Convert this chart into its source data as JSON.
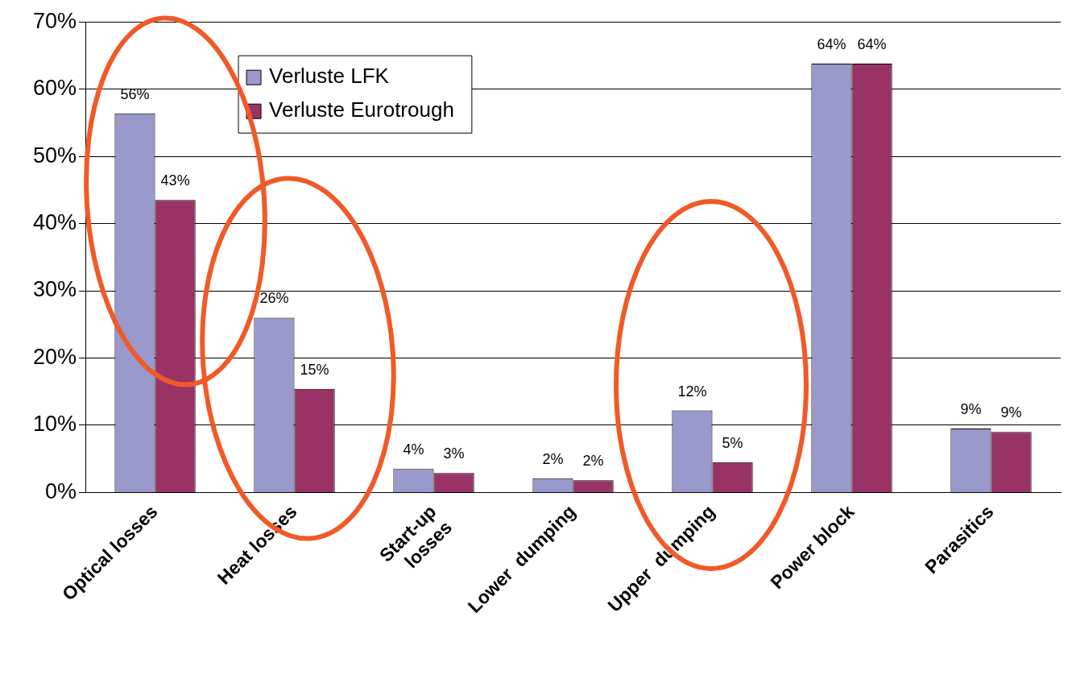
{
  "chart_data": {
    "type": "bar",
    "categories": [
      "Optical losses",
      "Heat losses",
      "Start-up\nlosses",
      "Lower  dumping",
      "Upper  dumping",
      "Power block",
      "Parasitics"
    ],
    "series": [
      {
        "name": "Verluste LFK",
        "color": "#9999cc",
        "values": [
          56.4,
          26.0,
          3.5,
          2.1,
          12.2,
          63.8,
          9.5
        ],
        "value_labels": [
          "56%",
          "26%",
          "4%",
          "2%",
          "12%",
          "64%",
          "9%"
        ]
      },
      {
        "name": "Verluste Eurotrough",
        "color": "#993366",
        "values": [
          43.5,
          15.4,
          2.9,
          1.8,
          4.5,
          63.8,
          9.0
        ],
        "value_labels": [
          "43%",
          "15%",
          "3%",
          "2%",
          "5%",
          "64%",
          "9%"
        ]
      }
    ],
    "ylim": [
      0,
      70
    ],
    "yticks": [
      {
        "value": 0,
        "label": "0%"
      },
      {
        "value": 10,
        "label": "10%"
      },
      {
        "value": 20,
        "label": "20%"
      },
      {
        "value": 30,
        "label": "30%"
      },
      {
        "value": 40,
        "label": "40%"
      },
      {
        "value": 50,
        "label": "50%"
      },
      {
        "value": 60,
        "label": "60%"
      },
      {
        "value": 70,
        "label": "70%"
      }
    ],
    "grid": "y",
    "legend": "top left"
  }
}
